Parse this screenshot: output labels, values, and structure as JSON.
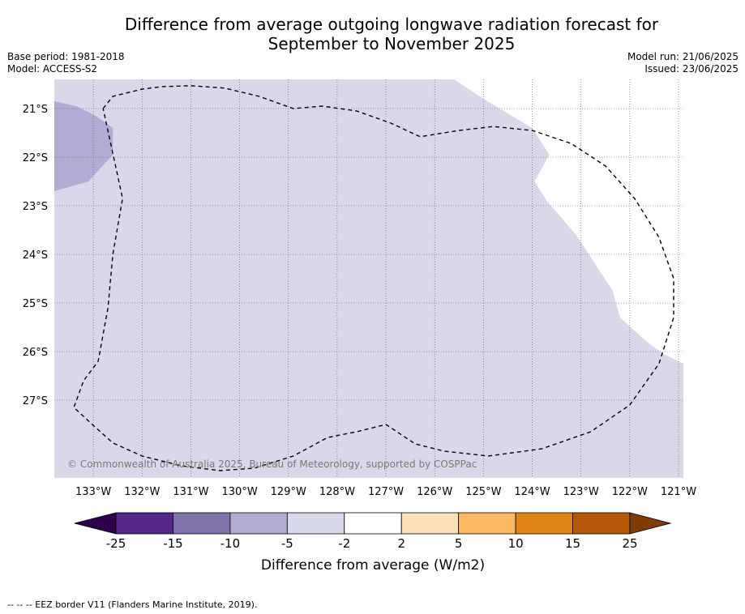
{
  "title_line1": "Difference from average outgoing longwave radiation forecast for",
  "title_line2": "September to November 2025",
  "base_period": "Base period: 1981-2018",
  "model": "Model: ACCESS-S2",
  "model_run": "Model run: 21/06/2025",
  "issued": "Issued: 23/06/2025",
  "copyright": "© Commonwealth of Australia 2025, Bureau of Meteorology, supported by COSPPac",
  "footnote": "--  --  -- EEZ border V11 (Flanders Marine Institute, 2019).",
  "map": {
    "lon_min": -133.8,
    "lon_max": -120.9,
    "lat_max": -20.4,
    "lat_min": -28.6,
    "lon_ticks": [
      {
        "value": -133,
        "label": "133°W"
      },
      {
        "value": -132,
        "label": "132°W"
      },
      {
        "value": -131,
        "label": "131°W"
      },
      {
        "value": -130,
        "label": "130°W"
      },
      {
        "value": -129,
        "label": "129°W"
      },
      {
        "value": -128,
        "label": "128°W"
      },
      {
        "value": -127,
        "label": "127°W"
      },
      {
        "value": -126,
        "label": "126°W"
      },
      {
        "value": -125,
        "label": "125°W"
      },
      {
        "value": -124,
        "label": "124°W"
      },
      {
        "value": -123,
        "label": "123°W"
      },
      {
        "value": -122,
        "label": "122°W"
      },
      {
        "value": -121,
        "label": "121°W"
      }
    ],
    "lat_ticks": [
      {
        "value": -21,
        "label": "21°S"
      },
      {
        "value": -22,
        "label": "22°S"
      },
      {
        "value": -23,
        "label": "23°S"
      },
      {
        "value": -24,
        "label": "24°S"
      },
      {
        "value": -25,
        "label": "25°S"
      },
      {
        "value": -26,
        "label": "26°S"
      },
      {
        "value": -27,
        "label": "27°S"
      }
    ],
    "background_color": "#d8d8ea",
    "white_region_color": "#ffffff",
    "white_region": [
      [
        -125.6,
        -20.4
      ],
      [
        -125.0,
        -20.8
      ],
      [
        -124.0,
        -21.4
      ],
      [
        -123.65,
        -21.95
      ],
      [
        -123.95,
        -22.5
      ],
      [
        -123.7,
        -22.9
      ],
      [
        -123.1,
        -23.6
      ],
      [
        -122.35,
        -24.75
      ],
      [
        -122.2,
        -25.3
      ],
      [
        -121.65,
        -25.8
      ],
      [
        -121.3,
        -26.05
      ],
      [
        -120.9,
        -26.25
      ],
      [
        -120.9,
        -20.4
      ]
    ],
    "purple_region_color": "#b1acd4",
    "purple_region": [
      [
        -133.8,
        -20.85
      ],
      [
        -133.35,
        -20.95
      ],
      [
        -132.95,
        -21.15
      ],
      [
        -132.6,
        -21.4
      ],
      [
        -132.6,
        -21.95
      ],
      [
        -133.1,
        -22.5
      ],
      [
        -133.8,
        -22.7
      ]
    ],
    "eez_border": [
      [
        -132.8,
        -21.0
      ],
      [
        -132.6,
        -20.75
      ],
      [
        -132.0,
        -20.6
      ],
      [
        -131.6,
        -20.55
      ],
      [
        -131.0,
        -20.53
      ],
      [
        -130.3,
        -20.58
      ],
      [
        -129.6,
        -20.75
      ],
      [
        -128.9,
        -21.0
      ],
      [
        -128.3,
        -20.95
      ],
      [
        -127.6,
        -21.05
      ],
      [
        -126.9,
        -21.3
      ],
      [
        -126.3,
        -21.58
      ],
      [
        -125.5,
        -21.45
      ],
      [
        -124.8,
        -21.37
      ],
      [
        -124.0,
        -21.45
      ],
      [
        -123.2,
        -21.72
      ],
      [
        -122.5,
        -22.18
      ],
      [
        -121.9,
        -22.85
      ],
      [
        -121.4,
        -23.65
      ],
      [
        -121.1,
        -24.5
      ],
      [
        -121.1,
        -25.3
      ],
      [
        -121.4,
        -26.25
      ],
      [
        -122.0,
        -27.1
      ],
      [
        -122.8,
        -27.65
      ],
      [
        -123.8,
        -28.0
      ],
      [
        -124.9,
        -28.15
      ],
      [
        -125.8,
        -28.05
      ],
      [
        -126.4,
        -27.9
      ],
      [
        -127.0,
        -27.5
      ],
      [
        -127.6,
        -27.65
      ],
      [
        -128.2,
        -27.77
      ],
      [
        -128.9,
        -28.15
      ],
      [
        -129.7,
        -28.4
      ],
      [
        -130.4,
        -28.45
      ],
      [
        -131.2,
        -28.35
      ],
      [
        -132.0,
        -28.15
      ],
      [
        -132.6,
        -27.88
      ],
      [
        -133.0,
        -27.52
      ],
      [
        -133.4,
        -27.15
      ],
      [
        -133.2,
        -26.6
      ],
      [
        -132.9,
        -26.2
      ],
      [
        -132.7,
        -25.1
      ],
      [
        -132.6,
        -24.0
      ],
      [
        -132.4,
        -22.85
      ],
      [
        -132.8,
        -21.0
      ]
    ]
  },
  "colorbar": {
    "label": "Difference from average (W/m2)",
    "tick_labels": [
      "-25",
      "-15",
      "-10",
      "-5",
      "-2",
      "2",
      "5",
      "10",
      "15",
      "25"
    ],
    "under_color": "#2d004b",
    "over_color": "#7f3b08",
    "colors": [
      "#542788",
      "#8073ac",
      "#b2abd2",
      "#d8daeb",
      "#ffffff",
      "#fee0b6",
      "#fdb863",
      "#e08214",
      "#b35806"
    ]
  }
}
